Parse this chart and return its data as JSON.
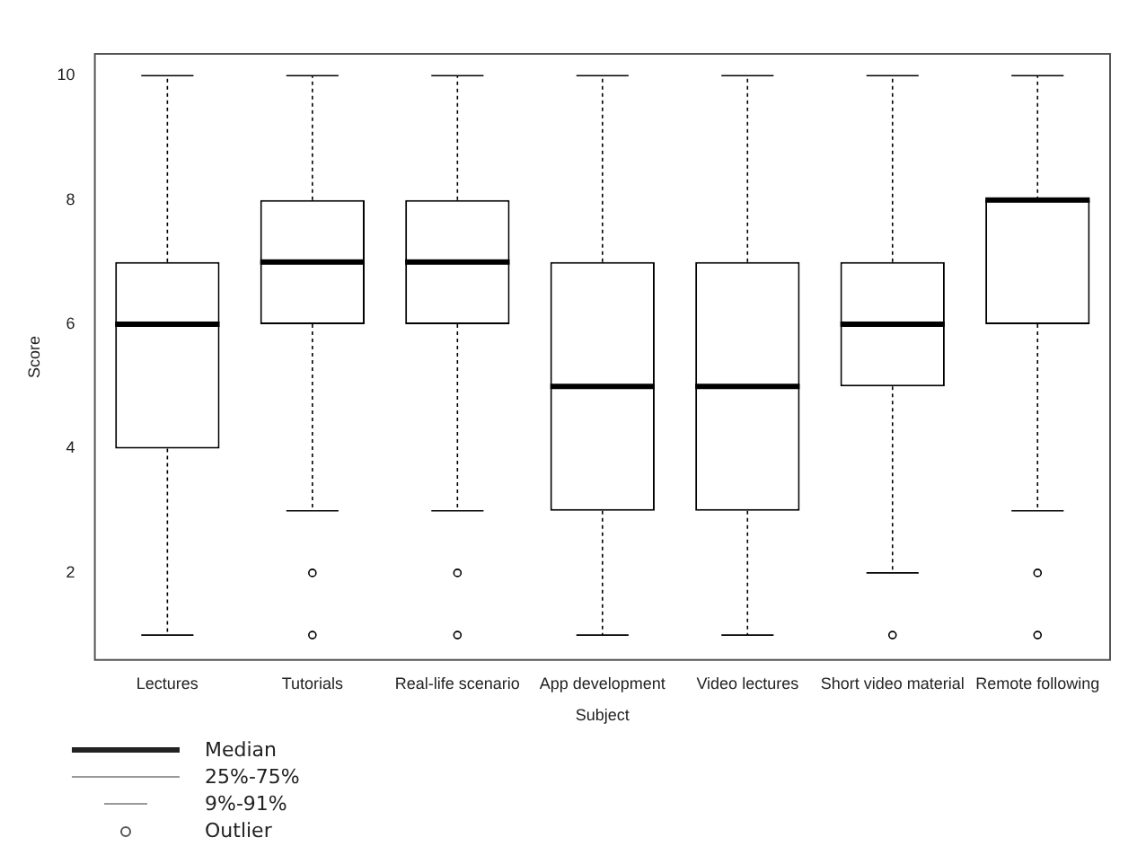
{
  "chart_data": {
    "type": "box",
    "xlabel": "Subject",
    "ylabel": "Score",
    "categories": [
      "Lectures",
      "Tutorials",
      "Real-life scenario",
      "App development",
      "Video lectures",
      "Short video material",
      "Remote following"
    ],
    "boxes": [
      {
        "low": 1,
        "q1": 4,
        "median": 6,
        "q3": 7,
        "high": 10
      },
      {
        "low": 3,
        "q1": 6,
        "median": 7,
        "q3": 8,
        "high": 10,
        "outliers": [
          2,
          1
        ]
      },
      {
        "low": 3,
        "q1": 6,
        "median": 7,
        "q3": 8,
        "high": 10,
        "outliers": [
          2,
          1
        ]
      },
      {
        "low": 1,
        "q1": 3,
        "median": 5,
        "q3": 7,
        "high": 10
      },
      {
        "low": 1,
        "q1": 3,
        "median": 5,
        "q3": 7,
        "high": 10
      },
      {
        "low": 2,
        "q1": 5,
        "median": 6,
        "q3": 7,
        "high": 10,
        "outliers": [
          1
        ]
      },
      {
        "low": 3,
        "q1": 6,
        "median": 8,
        "q3": 8,
        "high": 10,
        "outliers": [
          2,
          1
        ]
      }
    ],
    "color": "#000000",
    "ylim": [
      0.6,
      10.35
    ],
    "yticks": [
      2,
      4,
      6,
      8,
      10
    ],
    "grid": false,
    "annotations": [
      "Median",
      "25%-75%",
      "9%-91%",
      "Outlier"
    ]
  }
}
